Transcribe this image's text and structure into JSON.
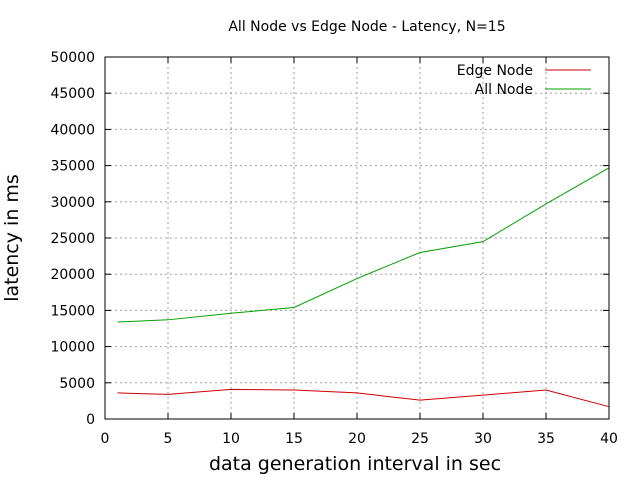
{
  "chart_data": {
    "type": "line",
    "title": "All Node vs Edge Node - Latency, N=15",
    "xlabel": "data generation interval in sec",
    "ylabel": "latency in ms",
    "xlim": [
      0,
      40
    ],
    "ylim": [
      0,
      50000
    ],
    "xticks": [
      0,
      5,
      10,
      15,
      20,
      25,
      30,
      35,
      40
    ],
    "yticks": [
      0,
      5000,
      10000,
      15000,
      20000,
      25000,
      30000,
      35000,
      40000,
      45000,
      50000
    ],
    "grid": true,
    "legend_position": "top-right",
    "series": [
      {
        "name": "Edge Node",
        "color": "#cc0000",
        "x": [
          1,
          5,
          10,
          15,
          20,
          25,
          30,
          35,
          40
        ],
        "y": [
          3600,
          3400,
          4100,
          4000,
          3600,
          2600,
          3300,
          4000,
          1700
        ]
      },
      {
        "name": "All Node",
        "color": "#00a000",
        "x": [
          1,
          5,
          10,
          15,
          20,
          25,
          30,
          35,
          40
        ],
        "y": [
          13400,
          13700,
          14600,
          15400,
          19400,
          23000,
          24500,
          29700,
          34700
        ]
      }
    ]
  }
}
